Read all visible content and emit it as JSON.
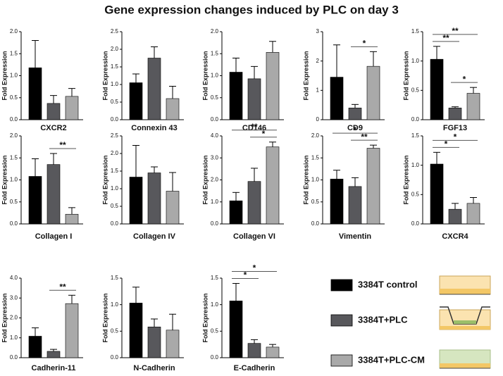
{
  "title": "Gene expression changes induced by PLC on day 3",
  "legend": {
    "series": [
      {
        "name": "3384T control",
        "color": "#000000"
      },
      {
        "name": "3384T+PLC",
        "color": "#58585c"
      },
      {
        "name": "3384T+PLC-CM",
        "color": "#a9a9a9"
      }
    ]
  },
  "chart_data": [
    {
      "type": "bar",
      "xlabel": "CXCR2",
      "ylabel": "Fold Expression",
      "values": [
        1.18,
        0.37,
        0.53
      ],
      "errors": [
        0.62,
        0.18,
        0.18
      ],
      "ylim": [
        0,
        2.0
      ],
      "yticks": [
        {
          "value": 0,
          "label": "0.0"
        },
        {
          "value": 0.5,
          "label": "0.5"
        },
        {
          "value": 1,
          "label": "1.0"
        },
        {
          "value": 1.5,
          "label": "1.5"
        },
        {
          "value": 2,
          "label": "2.0"
        }
      ],
      "significance": []
    },
    {
      "type": "bar",
      "xlabel": "Connexin 43",
      "ylabel": "Fold Expression",
      "values": [
        1.05,
        1.75,
        0.6
      ],
      "errors": [
        0.25,
        0.32,
        0.35
      ],
      "ylim": [
        0,
        2.5
      ],
      "yticks": [
        {
          "value": 0,
          "label": "0.0"
        },
        {
          "value": 0.5,
          "label": "0.5"
        },
        {
          "value": 1,
          "label": "1.0"
        },
        {
          "value": 1.5,
          "label": "1.5"
        },
        {
          "value": 2,
          "label": "2.0"
        },
        {
          "value": 2.5,
          "label": "2.5"
        }
      ],
      "significance": []
    },
    {
      "type": "bar",
      "xlabel": "CD146",
      "ylabel": "Fold Expression",
      "values": [
        1.08,
        0.93,
        1.53
      ],
      "errors": [
        0.32,
        0.28,
        0.25
      ],
      "ylim": [
        0,
        2.0
      ],
      "yticks": [
        {
          "value": 0,
          "label": "0.0"
        },
        {
          "value": 0.5,
          "label": "0.5"
        },
        {
          "value": 1,
          "label": "1.0"
        },
        {
          "value": 1.5,
          "label": "1.5"
        },
        {
          "value": 2,
          "label": "2.0"
        }
      ],
      "significance": []
    },
    {
      "type": "bar",
      "xlabel": "CD9",
      "ylabel": "Fold Expression",
      "values": [
        1.45,
        0.4,
        1.82
      ],
      "errors": [
        1.1,
        0.12,
        0.5
      ],
      "ylim": [
        0,
        3
      ],
      "yticks": [
        0,
        1,
        2,
        3
      ],
      "significance": [
        {
          "pair": [
            1,
            2
          ],
          "label": "*"
        }
      ]
    },
    {
      "type": "bar",
      "xlabel": "FGF13",
      "ylabel": "Fold Expression",
      "values": [
        1.03,
        0.2,
        0.45
      ],
      "errors": [
        0.22,
        0.02,
        0.1
      ],
      "ylim": [
        0,
        1.5
      ],
      "yticks": [
        {
          "value": 0,
          "label": "0.0"
        },
        {
          "value": 0.5,
          "label": "0.5"
        },
        {
          "value": 1,
          "label": "1.0"
        },
        {
          "value": 1.5,
          "label": "1.5"
        }
      ],
      "significance": [
        {
          "pair": [
            1,
            2
          ],
          "label": "*"
        },
        {
          "pair": [
            0,
            1
          ],
          "label": "**"
        },
        {
          "pair": [
            0,
            2
          ],
          "label": "**"
        }
      ]
    },
    {
      "type": "bar",
      "xlabel": "Collagen I",
      "ylabel": "Fold Expression",
      "values": [
        1.08,
        1.35,
        0.22
      ],
      "errors": [
        0.4,
        0.25,
        0.15
      ],
      "ylim": [
        0,
        2.0
      ],
      "yticks": [
        {
          "value": 0,
          "label": "0.0"
        },
        {
          "value": 0.5,
          "label": "0.5"
        },
        {
          "value": 1,
          "label": "1.0"
        },
        {
          "value": 1.5,
          "label": "1.5"
        },
        {
          "value": 2,
          "label": "2.0"
        }
      ],
      "significance": [
        {
          "pair": [
            1,
            2
          ],
          "label": "**"
        }
      ]
    },
    {
      "type": "bar",
      "xlabel": "Collagen IV",
      "ylabel": "Fold Expression",
      "values": [
        1.33,
        1.45,
        0.93
      ],
      "errors": [
        0.9,
        0.17,
        0.53
      ],
      "ylim": [
        0,
        2.5
      ],
      "yticks": [
        {
          "value": 0,
          "label": "0.0"
        },
        {
          "value": 0.5,
          "label": "0.5"
        },
        {
          "value": 1,
          "label": "1.0"
        },
        {
          "value": 1.5,
          "label": "1.5"
        },
        {
          "value": 2,
          "label": "2.0"
        },
        {
          "value": 2.5,
          "label": "2.5"
        }
      ],
      "significance": []
    },
    {
      "type": "bar",
      "xlabel": "Collagen VI",
      "ylabel": "Fold Expression",
      "values": [
        1.05,
        1.93,
        3.5
      ],
      "errors": [
        0.38,
        0.6,
        0.22
      ],
      "ylim": [
        0,
        4.0
      ],
      "yticks": [
        {
          "value": 0,
          "label": "0.0"
        },
        {
          "value": 1,
          "label": "1.0"
        },
        {
          "value": 2,
          "label": "2.0"
        },
        {
          "value": 3,
          "label": "3.0"
        },
        {
          "value": 4,
          "label": "4.0"
        }
      ],
      "significance": [
        {
          "pair": [
            1,
            2
          ],
          "label": "*"
        },
        {
          "pair": [
            0,
            2
          ],
          "label": "**"
        }
      ]
    },
    {
      "type": "bar",
      "xlabel": "Vimentin",
      "ylabel": "Fold Expression",
      "values": [
        1.02,
        0.85,
        1.72
      ],
      "errors": [
        0.2,
        0.2,
        0.07
      ],
      "ylim": [
        0,
        2.0
      ],
      "yticks": [
        {
          "value": 0,
          "label": "0.0"
        },
        {
          "value": 0.5,
          "label": "0.5"
        },
        {
          "value": 1,
          "label": "1.0"
        },
        {
          "value": 1.5,
          "label": "1.5"
        },
        {
          "value": 2,
          "label": "2.0"
        }
      ],
      "significance": [
        {
          "pair": [
            1,
            2
          ],
          "label": "**"
        },
        {
          "pair": [
            0,
            2
          ],
          "label": "*"
        }
      ]
    },
    {
      "type": "bar",
      "xlabel": "CXCR4",
      "ylabel": "Fold Expression",
      "values": [
        1.02,
        0.25,
        0.35
      ],
      "errors": [
        0.2,
        0.1,
        0.1
      ],
      "ylim": [
        0,
        1.5
      ],
      "yticks": [
        {
          "value": 0,
          "label": "0.0"
        },
        {
          "value": 0.5,
          "label": "0.5"
        },
        {
          "value": 1,
          "label": "1.0"
        },
        {
          "value": 1.5,
          "label": "1.5"
        }
      ],
      "significance": [
        {
          "pair": [
            0,
            1
          ],
          "label": "*"
        },
        {
          "pair": [
            0,
            2
          ],
          "label": "*"
        }
      ]
    },
    {
      "type": "bar",
      "xlabel": "Cadherin-11",
      "ylabel": "Fold Expression",
      "values": [
        1.08,
        0.32,
        2.72
      ],
      "errors": [
        0.42,
        0.1,
        0.42
      ],
      "ylim": [
        0,
        4.0
      ],
      "yticks": [
        {
          "value": 0,
          "label": "0.0"
        },
        {
          "value": 1,
          "label": "1.0"
        },
        {
          "value": 2,
          "label": "2.0"
        },
        {
          "value": 3,
          "label": "3.0"
        },
        {
          "value": 4,
          "label": "4.0"
        }
      ],
      "significance": [
        {
          "pair": [
            1,
            2
          ],
          "label": "**"
        }
      ]
    },
    {
      "type": "bar",
      "xlabel": "N-Cadherin",
      "ylabel": "Fold Expression",
      "values": [
        1.03,
        0.58,
        0.52
      ],
      "errors": [
        0.3,
        0.15,
        0.3
      ],
      "ylim": [
        0,
        1.5
      ],
      "yticks": [
        {
          "value": 0,
          "label": "0.0"
        },
        {
          "value": 0.5,
          "label": "0.5"
        },
        {
          "value": 1,
          "label": "1.0"
        },
        {
          "value": 1.5,
          "label": "1.5"
        }
      ],
      "significance": []
    },
    {
      "type": "bar",
      "xlabel": "E-Cadherin",
      "ylabel": "Fold Expression",
      "values": [
        1.07,
        0.27,
        0.2
      ],
      "errors": [
        0.33,
        0.07,
        0.05
      ],
      "ylim": [
        0,
        1.5
      ],
      "yticks": [
        {
          "value": 0,
          "label": "0.0"
        },
        {
          "value": 0.5,
          "label": "0.5"
        },
        {
          "value": 1,
          "label": "1.0"
        },
        {
          "value": 1.5,
          "label": "1.5"
        }
      ],
      "significance": [
        {
          "pair": [
            0,
            1
          ],
          "label": "*"
        },
        {
          "pair": [
            0,
            2
          ],
          "label": "*"
        }
      ]
    }
  ]
}
